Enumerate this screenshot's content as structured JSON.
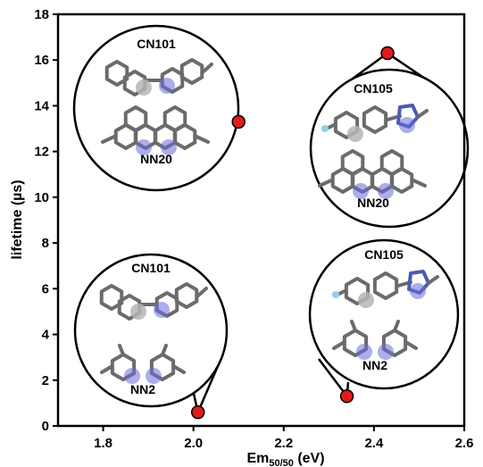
{
  "chart_data": {
    "type": "scatter",
    "title": "",
    "xlabel": {
      "main": "Em",
      "sub": "50/50",
      "unit": " (eV)"
    },
    "ylabel": "lifetime (µs)",
    "xlim": [
      1.7,
      2.6
    ],
    "ylim": [
      0,
      18
    ],
    "xticks": [
      1.8,
      2.0,
      2.2,
      2.4,
      2.6
    ],
    "xtick_labels": [
      "1.8",
      "2.0",
      "2.2",
      "2.4",
      "2.6"
    ],
    "yticks": [
      0,
      2,
      4,
      6,
      8,
      10,
      12,
      14,
      16,
      18
    ],
    "ytick_labels": [
      "0",
      "2",
      "4",
      "6",
      "8",
      "10",
      "12",
      "14",
      "16",
      "18"
    ],
    "grid": false,
    "marker_color": "#e21b1b",
    "points": [
      {
        "x": 2.1,
        "y": 13.3,
        "labels": [
          "CN101",
          "NN20"
        ]
      },
      {
        "x": 2.43,
        "y": 16.3,
        "labels": [
          "CN105",
          "NN20"
        ]
      },
      {
        "x": 2.01,
        "y": 0.6,
        "labels": [
          "CN101",
          "NN2"
        ]
      },
      {
        "x": 2.34,
        "y": 1.3,
        "labels": [
          "CN105",
          "NN2"
        ]
      }
    ]
  }
}
